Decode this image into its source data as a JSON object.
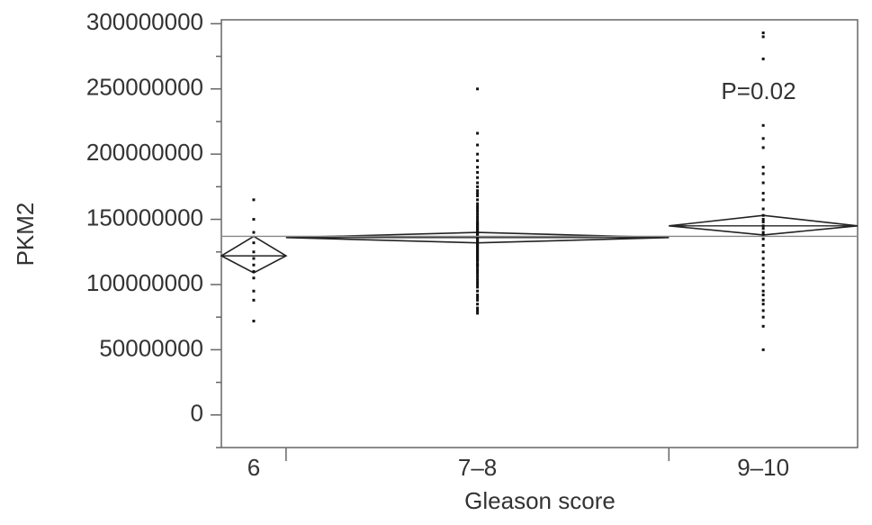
{
  "chart_data": {
    "type": "diamond",
    "y_label": "PKM2",
    "x_label": "Gleason score",
    "annotation": "P=0.02",
    "categories": [
      "6",
      "7–8",
      "9–10"
    ],
    "ylim": [
      -25000000,
      303000000
    ],
    "yticks": [
      0,
      50000000,
      100000000,
      150000000,
      200000000,
      250000000,
      300000000
    ],
    "yminorticks": [
      -25000000,
      25000000,
      75000000,
      125000000,
      175000000,
      225000000,
      275000000
    ],
    "grand_mean": 137000000,
    "groups": [
      {
        "mean": 122000000,
        "lower": 109000000,
        "upper": 137000000,
        "points": [
          72000000,
          88000000,
          95000000,
          105000000,
          110000000,
          115000000,
          120000000,
          125000000,
          132000000,
          140000000,
          150000000,
          165000000
        ]
      },
      {
        "mean": 136000000,
        "lower": 132000000,
        "upper": 140000000,
        "points": [
          78000000,
          80000000,
          82000000,
          85000000,
          88000000,
          90000000,
          92000000,
          95000000,
          98000000,
          100000000,
          102000000,
          104000000,
          106000000,
          108000000,
          110000000,
          112000000,
          114000000,
          115000000,
          116000000,
          118000000,
          119000000,
          120000000,
          121000000,
          122000000,
          123000000,
          124000000,
          125000000,
          126000000,
          127000000,
          128000000,
          129000000,
          130000000,
          131000000,
          132000000,
          133000000,
          134000000,
          135000000,
          136000000,
          137000000,
          138000000,
          139000000,
          140000000,
          141000000,
          142000000,
          143000000,
          144000000,
          145000000,
          146000000,
          147000000,
          148000000,
          150000000,
          152000000,
          154000000,
          156000000,
          158000000,
          160000000,
          162000000,
          165000000,
          168000000,
          170000000,
          172000000,
          175000000,
          178000000,
          182000000,
          186000000,
          190000000,
          195000000,
          200000000,
          207000000,
          216000000,
          250000000
        ]
      },
      {
        "mean": 145000000,
        "lower": 138000000,
        "upper": 153000000,
        "points": [
          50000000,
          68000000,
          75000000,
          80000000,
          85000000,
          88000000,
          92000000,
          95000000,
          100000000,
          105000000,
          110000000,
          115000000,
          120000000,
          125000000,
          130000000,
          135000000,
          138000000,
          140000000,
          143000000,
          145000000,
          148000000,
          150000000,
          153000000,
          158000000,
          165000000,
          170000000,
          178000000,
          185000000,
          190000000,
          205000000,
          212000000,
          222000000,
          273000000,
          290000000,
          293000000
        ]
      }
    ]
  }
}
